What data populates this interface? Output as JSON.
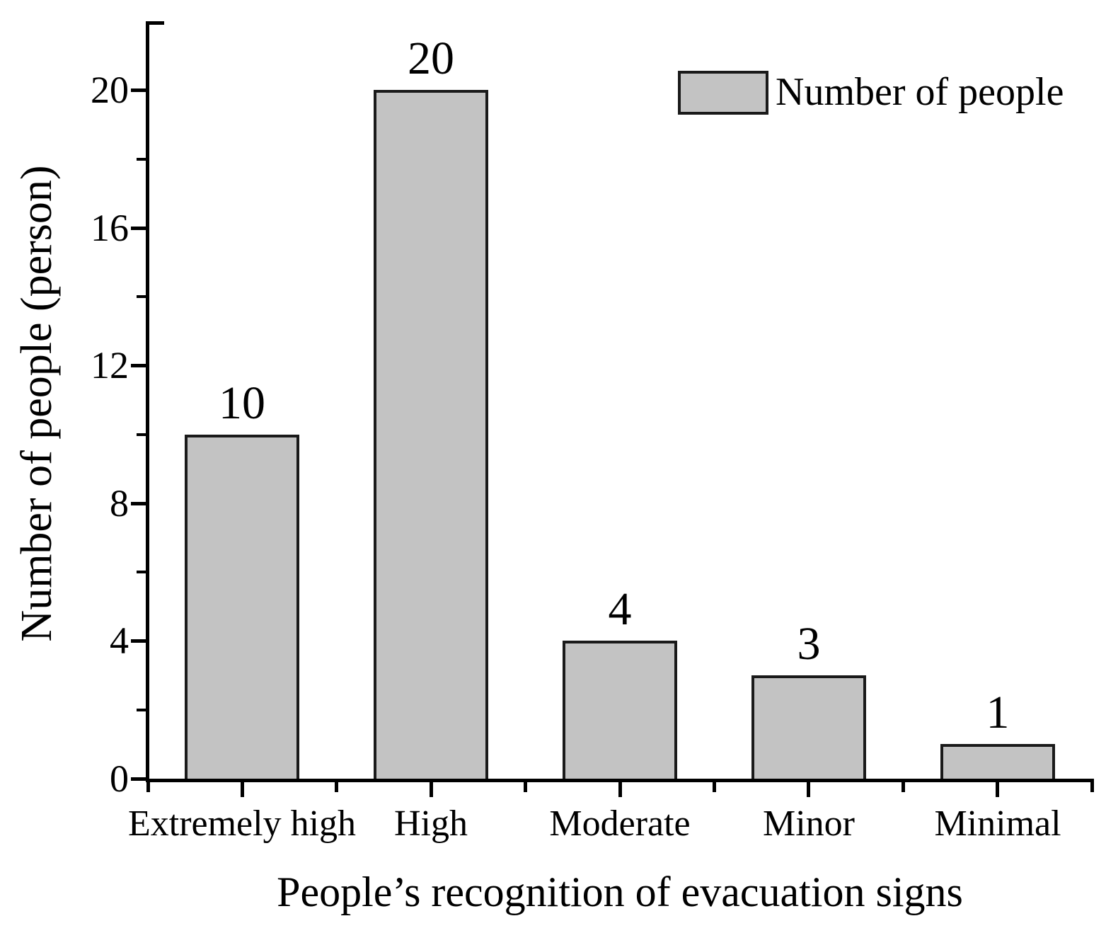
{
  "chart_data": {
    "type": "bar",
    "title": "",
    "categories": [
      "Extremely high",
      "High",
      "Moderate",
      "Minor",
      "Minimal"
    ],
    "values": [
      10,
      20,
      4,
      3,
      1
    ],
    "bar_value_labels": [
      "10",
      "20",
      "4",
      "3",
      "1"
    ],
    "xlabel": "People’s recognition of evacuation signs",
    "ylabel": "Number of people (person)",
    "ylim": [
      0,
      22
    ],
    "yticks_major": [
      0,
      4,
      8,
      12,
      16,
      20
    ],
    "yticks_minor": [
      2,
      6,
      10,
      14,
      18
    ],
    "grid": false,
    "legend": {
      "position": "top-right",
      "entries": [
        {
          "label": "Number of people",
          "swatch": "gray-rectangle"
        }
      ]
    },
    "colors": {
      "bar_fill": "#c3c3c3",
      "bar_border": "#1a1a1a",
      "axis": "#000000",
      "text": "#000000",
      "background": "#ffffff"
    }
  }
}
